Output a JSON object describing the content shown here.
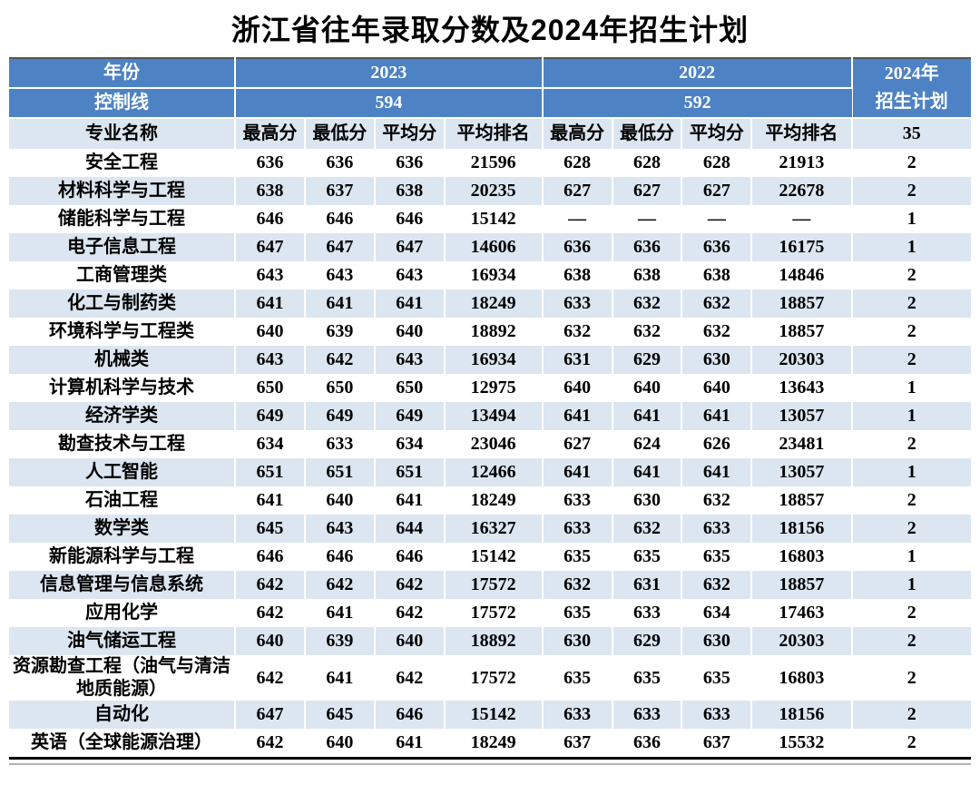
{
  "title": "浙江省往年录取分数及2024年招生计划",
  "colors": {
    "header_blue": "#4d82c4",
    "row_shade": "#dce6f1",
    "header_text": "#ffffff",
    "body_text": "#000000"
  },
  "header": {
    "year_label": "年份",
    "year_2023": "2023",
    "year_2022": "2022",
    "control_label": "控制线",
    "control_2023": "594",
    "control_2022": "592",
    "plan_label_line1": "2024年",
    "plan_label_line2": "招生计划",
    "major_label": "专业名称",
    "sub_headers": [
      "最高分",
      "最低分",
      "平均分",
      "平均排名",
      "最高分",
      "最低分",
      "平均分",
      "平均排名"
    ],
    "plan_total": "35"
  },
  "chart_data": {
    "type": "table",
    "title": "浙江省往年录取分数及2024年招生计划",
    "columns": [
      "专业名称",
      "2023 最高分",
      "2023 最低分",
      "2023 平均分",
      "2023 平均排名",
      "2022 最高分",
      "2022 最低分",
      "2022 平均分",
      "2022 平均排名",
      "2024年招生计划"
    ],
    "control_lines": {
      "2023": "594",
      "2022": "592"
    },
    "plan_total": "35",
    "rows": [
      {
        "major": "安全工程",
        "values": [
          "636",
          "636",
          "636",
          "21596",
          "628",
          "628",
          "628",
          "21913",
          "2"
        ]
      },
      {
        "major": "材料科学与工程",
        "values": [
          "638",
          "637",
          "638",
          "20235",
          "627",
          "627",
          "627",
          "22678",
          "2"
        ]
      },
      {
        "major": "储能科学与工程",
        "values": [
          "646",
          "646",
          "646",
          "15142",
          "—",
          "—",
          "—",
          "—",
          "1"
        ]
      },
      {
        "major": "电子信息工程",
        "values": [
          "647",
          "647",
          "647",
          "14606",
          "636",
          "636",
          "636",
          "16175",
          "1"
        ]
      },
      {
        "major": "工商管理类",
        "values": [
          "643",
          "643",
          "643",
          "16934",
          "638",
          "638",
          "638",
          "14846",
          "2"
        ]
      },
      {
        "major": "化工与制药类",
        "values": [
          "641",
          "641",
          "641",
          "18249",
          "633",
          "632",
          "632",
          "18857",
          "2"
        ]
      },
      {
        "major": "环境科学与工程类",
        "values": [
          "640",
          "639",
          "640",
          "18892",
          "632",
          "632",
          "632",
          "18857",
          "2"
        ]
      },
      {
        "major": "机械类",
        "values": [
          "643",
          "642",
          "643",
          "16934",
          "631",
          "629",
          "630",
          "20303",
          "2"
        ]
      },
      {
        "major": "计算机科学与技术",
        "values": [
          "650",
          "650",
          "650",
          "12975",
          "640",
          "640",
          "640",
          "13643",
          "1"
        ]
      },
      {
        "major": "经济学类",
        "values": [
          "649",
          "649",
          "649",
          "13494",
          "641",
          "641",
          "641",
          "13057",
          "1"
        ]
      },
      {
        "major": "勘查技术与工程",
        "values": [
          "634",
          "633",
          "634",
          "23046",
          "627",
          "624",
          "626",
          "23481",
          "2"
        ]
      },
      {
        "major": "人工智能",
        "values": [
          "651",
          "651",
          "651",
          "12466",
          "641",
          "641",
          "641",
          "13057",
          "1"
        ]
      },
      {
        "major": "石油工程",
        "values": [
          "641",
          "640",
          "641",
          "18249",
          "633",
          "630",
          "632",
          "18857",
          "2"
        ]
      },
      {
        "major": "数学类",
        "values": [
          "645",
          "643",
          "644",
          "16327",
          "633",
          "632",
          "633",
          "18156",
          "2"
        ]
      },
      {
        "major": "新能源科学与工程",
        "values": [
          "646",
          "646",
          "646",
          "15142",
          "635",
          "635",
          "635",
          "16803",
          "1"
        ]
      },
      {
        "major": "信息管理与信息系统",
        "values": [
          "642",
          "642",
          "642",
          "17572",
          "632",
          "631",
          "632",
          "18857",
          "1"
        ]
      },
      {
        "major": "应用化学",
        "values": [
          "642",
          "641",
          "642",
          "17572",
          "635",
          "633",
          "634",
          "17463",
          "2"
        ]
      },
      {
        "major": "油气储运工程",
        "values": [
          "640",
          "639",
          "640",
          "18892",
          "630",
          "629",
          "630",
          "20303",
          "2"
        ]
      },
      {
        "major": "资源勘查工程（油气与清洁地质能源）",
        "values": [
          "642",
          "641",
          "642",
          "17572",
          "635",
          "635",
          "635",
          "16803",
          "2"
        ]
      },
      {
        "major": "自动化",
        "values": [
          "647",
          "645",
          "646",
          "15142",
          "633",
          "633",
          "633",
          "18156",
          "2"
        ]
      },
      {
        "major": "英语（全球能源治理）",
        "values": [
          "642",
          "640",
          "641",
          "18249",
          "637",
          "636",
          "637",
          "15532",
          "2"
        ]
      }
    ]
  }
}
